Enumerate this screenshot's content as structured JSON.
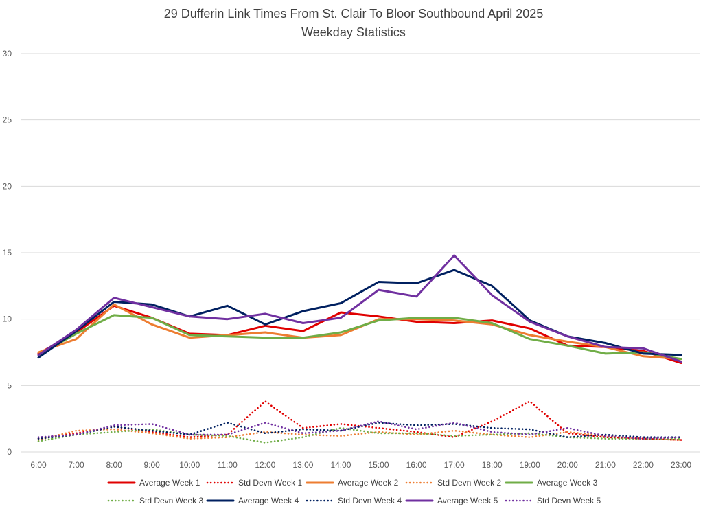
{
  "chart_data": {
    "type": "line",
    "title": "29 Dufferin Link Times From St. Clair To Bloor Southbound April 2025",
    "subtitle": "Weekday Statistics",
    "xlabel": "",
    "ylabel": "",
    "ylim": [
      0,
      30
    ],
    "yticks": [
      0,
      5,
      10,
      15,
      20,
      25,
      30
    ],
    "grid": true,
    "legend_position": "bottom",
    "categories": [
      "6:00",
      "7:00",
      "8:00",
      "9:00",
      "10:00",
      "11:00",
      "12:00",
      "13:00",
      "14:00",
      "15:00",
      "16:00",
      "17:00",
      "18:00",
      "19:00",
      "20:00",
      "21:00",
      "22:00",
      "23:00"
    ],
    "series": [
      {
        "name": "Average Week 1",
        "color": "#e00000",
        "style": "solid",
        "values": [
          7.4,
          9.0,
          11.0,
          10.1,
          8.9,
          8.8,
          9.5,
          9.1,
          10.5,
          10.2,
          9.8,
          9.7,
          9.9,
          9.3,
          8.0,
          7.9,
          7.6,
          6.7
        ]
      },
      {
        "name": "Std Devn Week 1",
        "color": "#e00000",
        "style": "dotted",
        "values": [
          1.0,
          1.4,
          1.9,
          1.5,
          1.1,
          1.3,
          3.8,
          1.8,
          2.1,
          1.8,
          1.5,
          1.1,
          2.3,
          3.8,
          1.4,
          1.1,
          1.0,
          0.9
        ]
      },
      {
        "name": "Average Week 2",
        "color": "#ed7d31",
        "style": "solid",
        "values": [
          7.5,
          8.5,
          11.1,
          9.6,
          8.6,
          8.8,
          9.0,
          8.6,
          8.8,
          10.0,
          10.0,
          9.9,
          9.6,
          8.8,
          8.3,
          7.9,
          7.2,
          7.0
        ]
      },
      {
        "name": "Std Devn Week 2",
        "color": "#ed7d31",
        "style": "dotted",
        "values": [
          0.9,
          1.6,
          1.7,
          1.4,
          1.0,
          1.1,
          1.5,
          1.3,
          1.2,
          1.5,
          1.3,
          1.6,
          1.3,
          1.1,
          1.5,
          1.2,
          1.0,
          0.9
        ]
      },
      {
        "name": "Average Week 3",
        "color": "#70ad47",
        "style": "solid",
        "values": [
          7.3,
          8.9,
          10.3,
          10.1,
          8.8,
          8.7,
          8.6,
          8.6,
          9.0,
          9.9,
          10.1,
          10.1,
          9.7,
          8.5,
          8.0,
          7.4,
          7.5,
          7.0
        ]
      },
      {
        "name": "Std Devn Week 3",
        "color": "#70ad47",
        "style": "dotted",
        "values": [
          0.8,
          1.3,
          1.5,
          1.7,
          1.3,
          1.2,
          0.7,
          1.1,
          1.8,
          1.4,
          1.4,
          1.2,
          1.3,
          1.4,
          1.1,
          1.0,
          1.0,
          1.0
        ]
      },
      {
        "name": "Average Week 4",
        "color": "#002060",
        "style": "solid",
        "values": [
          7.1,
          9.1,
          11.3,
          11.1,
          10.2,
          11.0,
          9.6,
          10.6,
          11.2,
          12.8,
          12.7,
          13.7,
          12.5,
          9.9,
          8.7,
          8.2,
          7.4,
          7.3
        ]
      },
      {
        "name": "Std Devn Week 4",
        "color": "#002060",
        "style": "dotted",
        "values": [
          1.0,
          1.3,
          1.9,
          1.6,
          1.3,
          2.2,
          1.4,
          1.7,
          1.6,
          2.2,
          2.0,
          2.1,
          1.8,
          1.7,
          1.1,
          1.3,
          1.1,
          1.1
        ]
      },
      {
        "name": "Average Week 5",
        "color": "#7030a0",
        "style": "solid",
        "values": [
          7.3,
          9.2,
          11.6,
          10.9,
          10.2,
          10.0,
          10.4,
          9.7,
          10.1,
          12.2,
          11.7,
          14.8,
          11.8,
          9.8,
          8.7,
          7.9,
          7.8,
          6.8
        ]
      },
      {
        "name": "Std Devn Week 5",
        "color": "#7030a0",
        "style": "dotted",
        "values": [
          1.1,
          1.3,
          2.0,
          2.1,
          1.3,
          1.3,
          2.2,
          1.4,
          1.6,
          2.3,
          1.7,
          2.2,
          1.5,
          1.3,
          1.8,
          1.2,
          1.0,
          1.1
        ]
      }
    ]
  }
}
